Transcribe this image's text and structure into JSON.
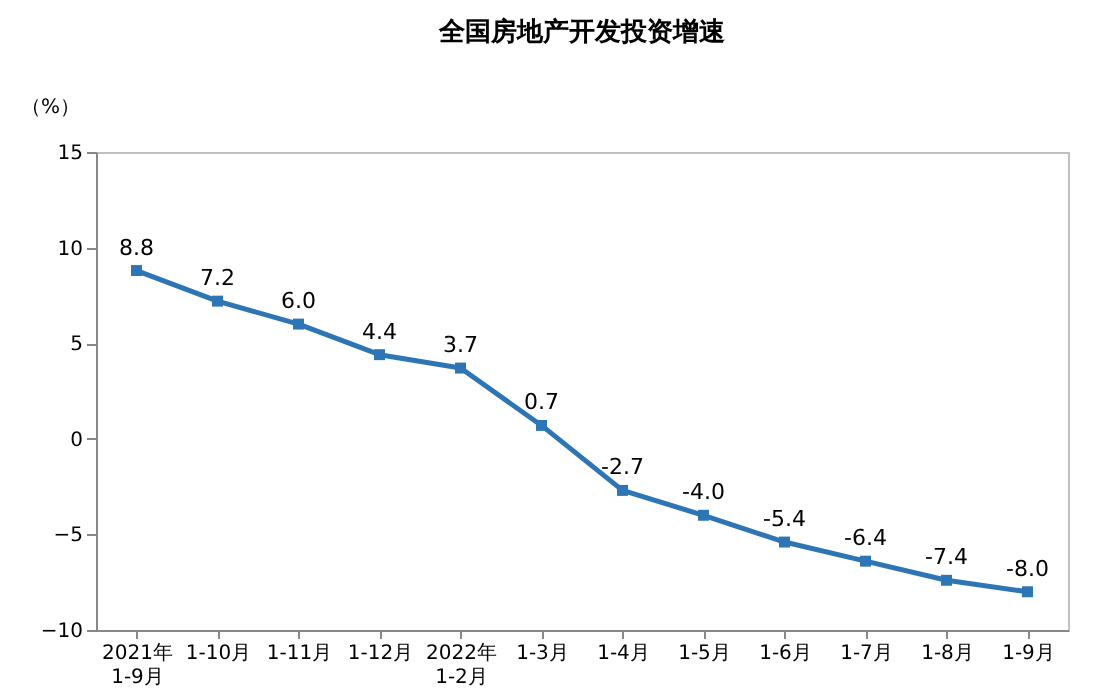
{
  "chart_data": {
    "type": "line",
    "title": "全国房地产开发投资增速",
    "ylabel": "（%）",
    "categories": [
      "2021年\n1-9月",
      "1-10月",
      "1-11月",
      "1-12月",
      "2022年\n1-2月",
      "1-3月",
      "1-4月",
      "1-5月",
      "1-6月",
      "1-7月",
      "1-8月",
      "1-9月"
    ],
    "series": [
      {
        "color": "#2e75b6",
        "values": [
          8.8,
          7.2,
          6.0,
          4.4,
          3.7,
          0.7,
          -2.7,
          -4.0,
          -5.4,
          -6.4,
          -7.4,
          -8.0
        ],
        "value_labels": [
          "8.8",
          "7.2",
          "6.0",
          "4.4",
          "3.7",
          "0.7",
          "-2.7",
          "-4.0",
          "-5.4",
          "-6.4",
          "-7.4",
          "-8.0"
        ]
      }
    ],
    "ylim": [
      -10,
      15
    ],
    "yticks": [
      -10,
      -5,
      0,
      5,
      10,
      15
    ],
    "grid": false,
    "marker": "square",
    "line_style": "solid"
  }
}
